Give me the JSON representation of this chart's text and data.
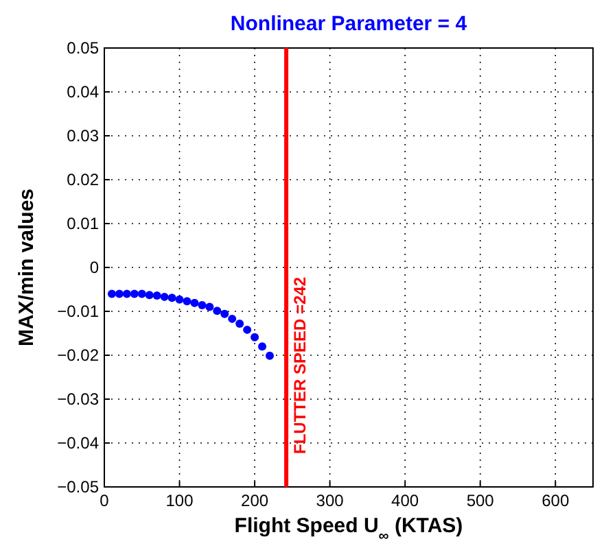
{
  "chart_data": {
    "type": "scatter",
    "title": "Nonlinear Parameter = 4",
    "xlabel": "Flight Speed U$_{∞}$ (KTAS)",
    "ylabel": "MAX/min values",
    "x": [
      10,
      20,
      30,
      40,
      50,
      60,
      70,
      80,
      90,
      100,
      110,
      120,
      130,
      140,
      150,
      160,
      170,
      180,
      190,
      200,
      210,
      220
    ],
    "series": [
      {
        "color": "#0000ff",
        "values": [
          -0.006,
          -0.006,
          -0.006,
          -0.006,
          -0.006,
          -0.0063,
          -0.0064,
          -0.0067,
          -0.0069,
          -0.0073,
          -0.0077,
          -0.0081,
          -0.0086,
          -0.009,
          -0.0099,
          -0.0106,
          -0.0117,
          -0.0128,
          -0.0142,
          -0.0159,
          -0.018,
          -0.0201
        ]
      }
    ],
    "xlim": [
      0,
      650
    ],
    "xticks": [
      0,
      100,
      200,
      300,
      400,
      500,
      600
    ],
    "ylim": [
      -0.05,
      0.05
    ],
    "yticks": [
      -0.05,
      -0.04,
      -0.03,
      -0.02,
      -0.01,
      0,
      0.01,
      0.02,
      0.03,
      0.04,
      0.05
    ],
    "ref_lines": [
      {
        "axis": "x",
        "value": 242,
        "label": "FLUTTER SPEED =242",
        "color": "#ff0000"
      }
    ],
    "grid": true,
    "marker": "circle"
  }
}
